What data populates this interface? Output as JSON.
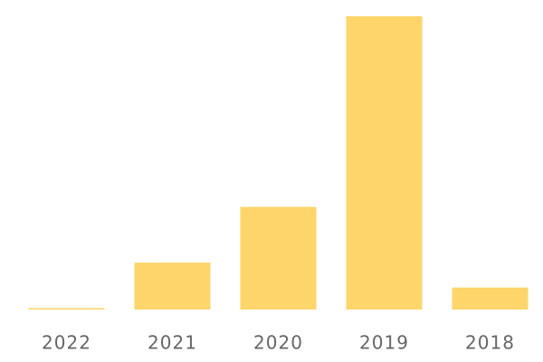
{
  "chart_data": {
    "type": "bar",
    "categories": [
      "2022",
      "2021",
      "2020",
      "2019",
      "2018"
    ],
    "values": [
      0.5,
      16,
      35,
      100,
      7.5
    ],
    "color": "#fdd56a",
    "ylim": [
      0,
      100
    ]
  }
}
